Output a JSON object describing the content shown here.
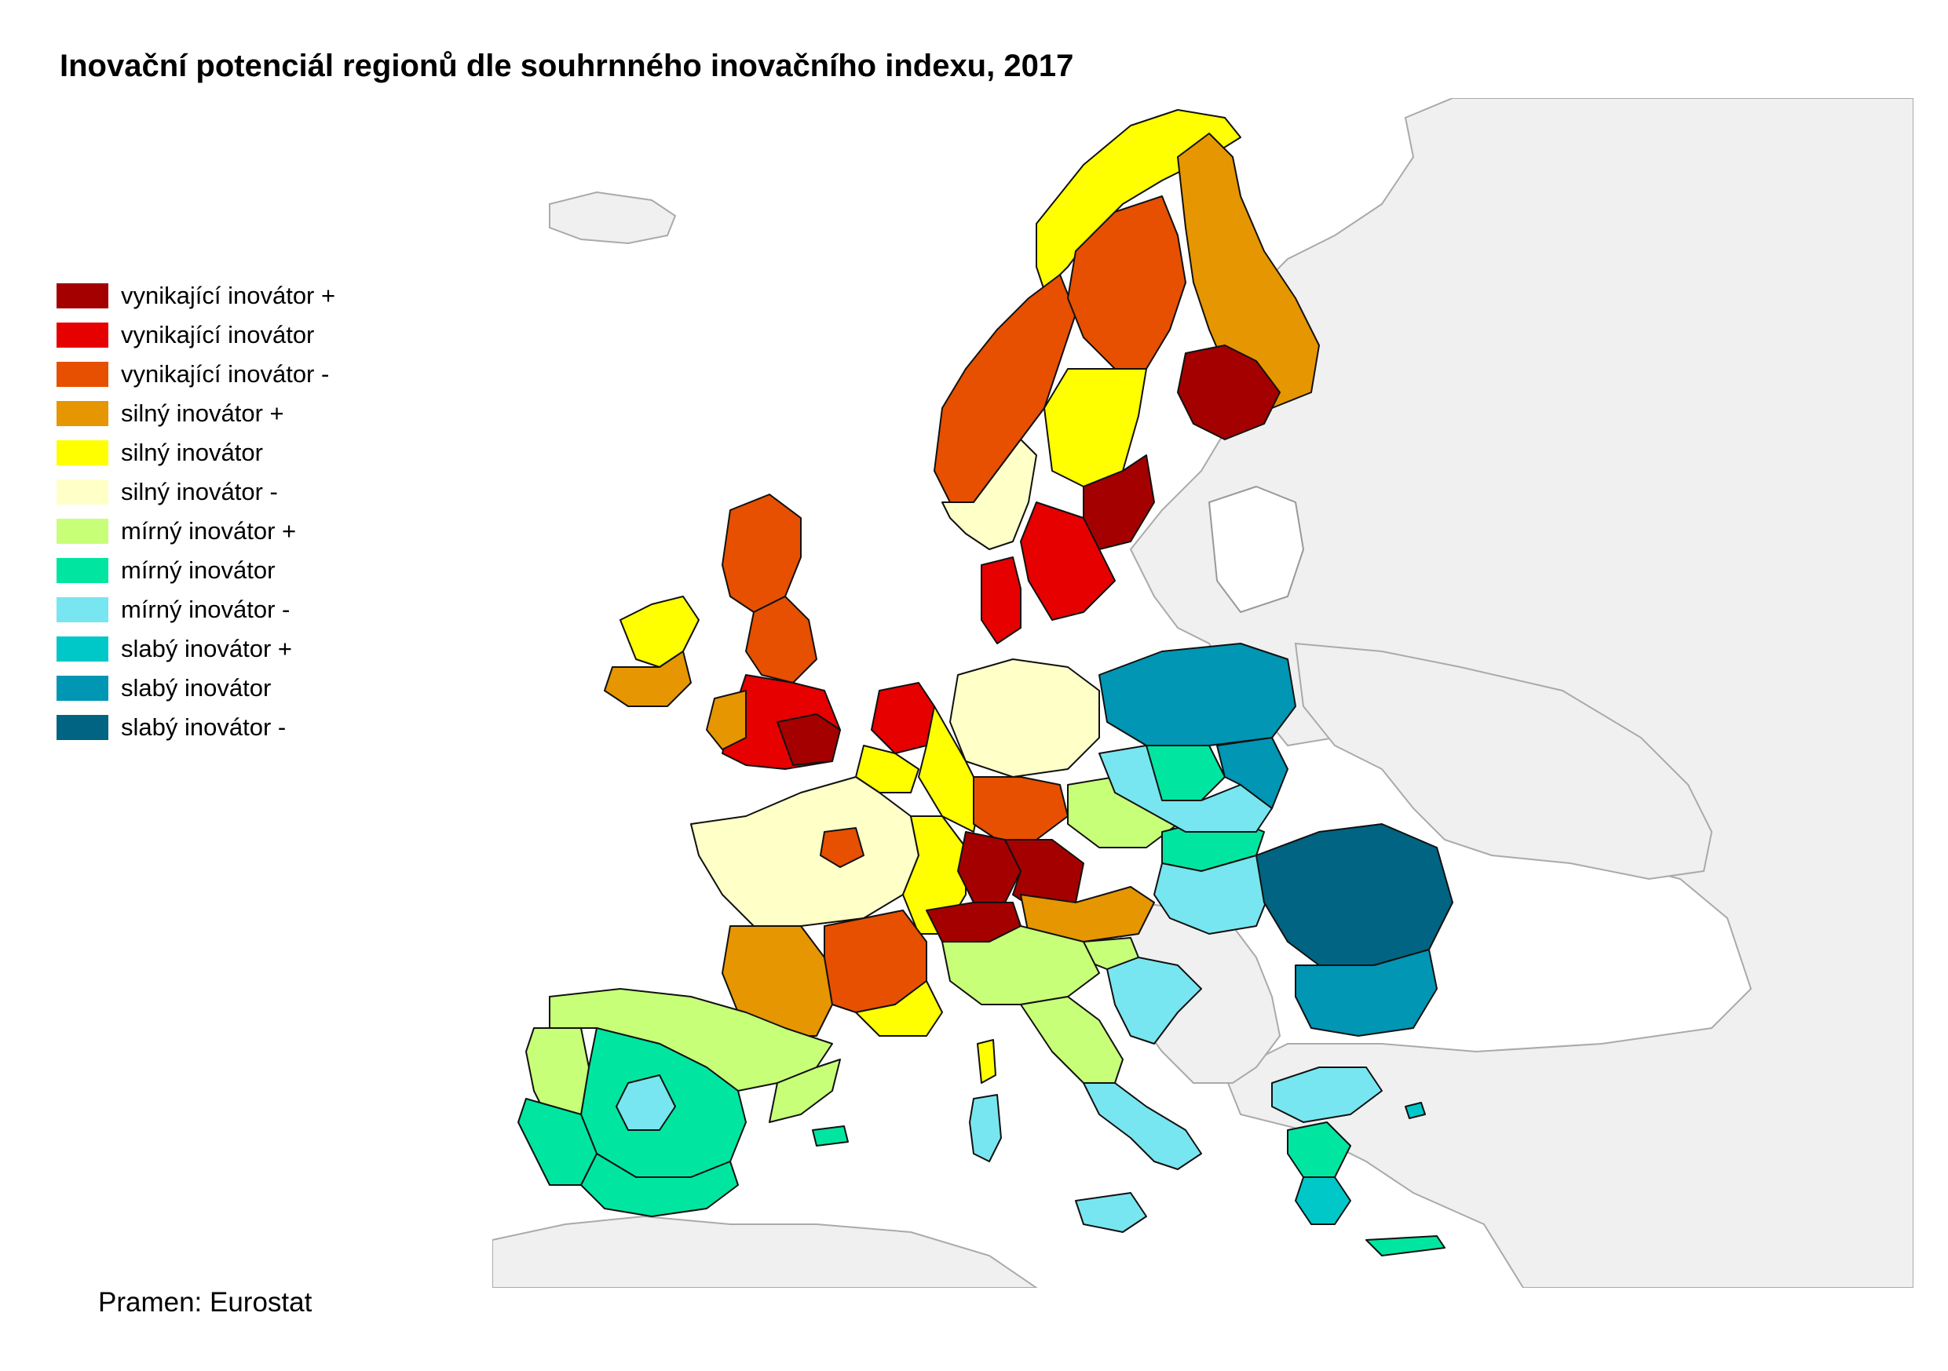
{
  "title": "Inovační potenciál regionů dle souhrnného inovačního indexu, 2017",
  "source": "Pramen: Eurostat",
  "legend": [
    {
      "label": "vynikající inovátor +",
      "color": "#a50000"
    },
    {
      "label": "vynikající inovátor",
      "color": "#e60000"
    },
    {
      "label": "vynikající inovátor -",
      "color": "#e65000"
    },
    {
      "label": "silný inovátor +",
      "color": "#e69600"
    },
    {
      "label": "silný inovátor",
      "color": "#ffff00"
    },
    {
      "label": "silný inovátor -",
      "color": "#ffffc8"
    },
    {
      "label": "mírný inovátor +",
      "color": "#c8ff78"
    },
    {
      "label": "mírný inovátor",
      "color": "#00e6a0"
    },
    {
      "label": "mírný inovátor -",
      "color": "#78e6f0"
    },
    {
      "label": "slabý inovátor +",
      "color": "#00c8c8"
    },
    {
      "label": "slabý inovátor",
      "color": "#0096b4"
    },
    {
      "label": "slabý inovátor -",
      "color": "#006482"
    }
  ],
  "map": {
    "sea_color": "#ffffff",
    "non_eu_land_color": "#f0f0f0",
    "border_color": "#000000"
  }
}
